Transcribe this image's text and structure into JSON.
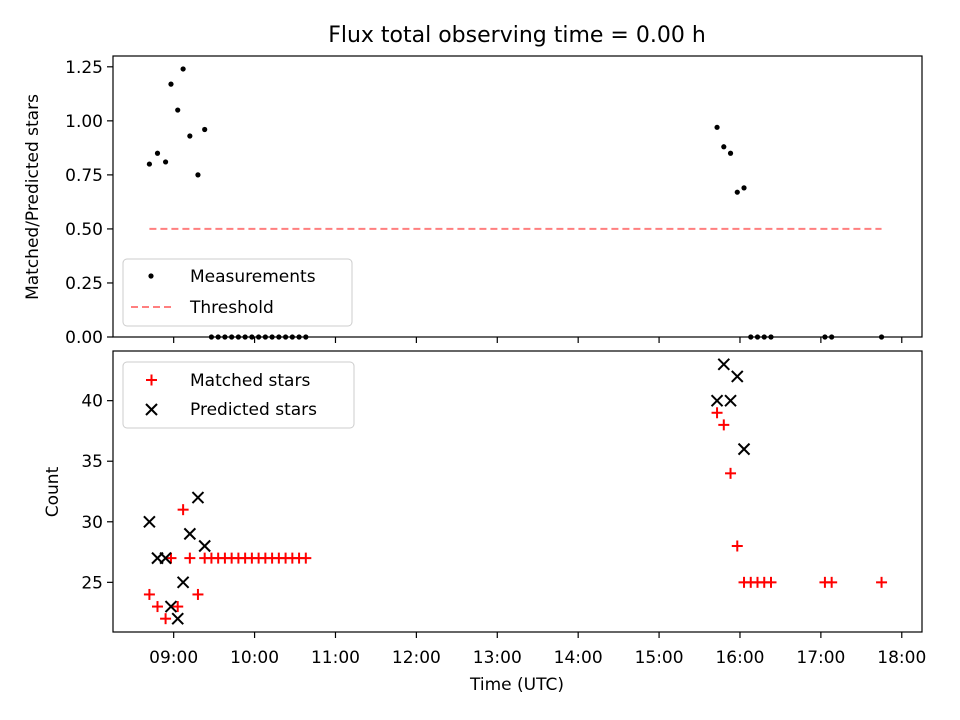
{
  "chart_data": [
    {
      "type": "scatter",
      "title": "Flux total observing time = 0.00 h",
      "xlabel": "",
      "ylabel": "Matched/Predicted stars",
      "ylim": [
        0,
        1.3
      ],
      "xlim": [
        "08:15",
        "18:15"
      ],
      "ytick_labels": [
        "0.00",
        "0.25",
        "0.50",
        "0.75",
        "1.00",
        "1.25"
      ],
      "legend_position": "lower-left",
      "series": [
        {
          "name": "Measurements",
          "marker": "dot",
          "color": "#000000",
          "points": [
            [
              "08:42",
              0.8
            ],
            [
              "08:48",
              0.85
            ],
            [
              "08:54",
              0.81
            ],
            [
              "08:58",
              1.17
            ],
            [
              "09:03",
              1.05
            ],
            [
              "09:07",
              1.24
            ],
            [
              "09:12",
              0.93
            ],
            [
              "09:18",
              0.75
            ],
            [
              "09:23",
              0.96
            ],
            [
              "09:28",
              0.0
            ],
            [
              "09:33",
              0.0
            ],
            [
              "09:38",
              0.0
            ],
            [
              "09:43",
              0.0
            ],
            [
              "09:48",
              0.0
            ],
            [
              "09:53",
              0.0
            ],
            [
              "09:58",
              0.0
            ],
            [
              "10:03",
              0.0
            ],
            [
              "10:08",
              0.0
            ],
            [
              "10:13",
              0.0
            ],
            [
              "10:18",
              0.0
            ],
            [
              "10:23",
              0.0
            ],
            [
              "10:28",
              0.0
            ],
            [
              "10:33",
              0.0
            ],
            [
              "10:38",
              0.0
            ],
            [
              "15:43",
              0.97
            ],
            [
              "15:48",
              0.88
            ],
            [
              "15:53",
              0.85
            ],
            [
              "15:58",
              0.67
            ],
            [
              "16:03",
              0.69
            ],
            [
              "16:08",
              0.0
            ],
            [
              "16:13",
              0.0
            ],
            [
              "16:18",
              0.0
            ],
            [
              "16:23",
              0.0
            ],
            [
              "17:03",
              0.0
            ],
            [
              "17:08",
              0.0
            ],
            [
              "17:45",
              0.0
            ]
          ]
        },
        {
          "name": "Threshold",
          "style": "dashed",
          "color": "#ff7f7f",
          "points": [
            [
              "08:42",
              0.5
            ],
            [
              "17:45",
              0.5
            ]
          ]
        }
      ]
    },
    {
      "type": "scatter",
      "title": "",
      "xlabel": "Time (UTC)",
      "ylabel": "Count",
      "ylim": [
        20.9,
        44.1
      ],
      "xlim": [
        "08:15",
        "18:15"
      ],
      "ytick_labels": [
        "25",
        "30",
        "35",
        "40"
      ],
      "xtick_labels": [
        "09:00",
        "10:00",
        "11:00",
        "12:00",
        "13:00",
        "14:00",
        "15:00",
        "16:00",
        "17:00",
        "18:00"
      ],
      "legend_position": "upper-left",
      "series": [
        {
          "name": "Matched stars",
          "marker": "plus",
          "color": "#ff0000",
          "points": [
            [
              "08:42",
              24
            ],
            [
              "08:48",
              23
            ],
            [
              "08:54",
              22
            ],
            [
              "08:58",
              27
            ],
            [
              "09:03",
              23
            ],
            [
              "09:07",
              31
            ],
            [
              "09:12",
              27
            ],
            [
              "09:18",
              24
            ],
            [
              "09:23",
              27
            ],
            [
              "09:28",
              27
            ],
            [
              "09:33",
              27
            ],
            [
              "09:38",
              27
            ],
            [
              "09:43",
              27
            ],
            [
              "09:48",
              27
            ],
            [
              "09:53",
              27
            ],
            [
              "09:58",
              27
            ],
            [
              "10:03",
              27
            ],
            [
              "10:08",
              27
            ],
            [
              "10:13",
              27
            ],
            [
              "10:18",
              27
            ],
            [
              "10:23",
              27
            ],
            [
              "10:28",
              27
            ],
            [
              "10:33",
              27
            ],
            [
              "10:38",
              27
            ],
            [
              "15:43",
              39
            ],
            [
              "15:48",
              38
            ],
            [
              "15:53",
              34
            ],
            [
              "15:58",
              28
            ],
            [
              "16:03",
              25
            ],
            [
              "16:08",
              25
            ],
            [
              "16:13",
              25
            ],
            [
              "16:18",
              25
            ],
            [
              "16:23",
              25
            ],
            [
              "17:03",
              25
            ],
            [
              "17:08",
              25
            ],
            [
              "17:45",
              25
            ]
          ]
        },
        {
          "name": "Predicted stars",
          "marker": "x",
          "color": "#000000",
          "points": [
            [
              "08:42",
              30
            ],
            [
              "08:48",
              27
            ],
            [
              "08:54",
              27
            ],
            [
              "08:58",
              23
            ],
            [
              "09:03",
              22
            ],
            [
              "09:07",
              25
            ],
            [
              "09:12",
              29
            ],
            [
              "09:18",
              32
            ],
            [
              "09:23",
              28
            ],
            [
              "15:43",
              40
            ],
            [
              "15:48",
              43
            ],
            [
              "15:53",
              40
            ],
            [
              "15:58",
              42
            ],
            [
              "16:03",
              36
            ]
          ]
        }
      ]
    }
  ]
}
